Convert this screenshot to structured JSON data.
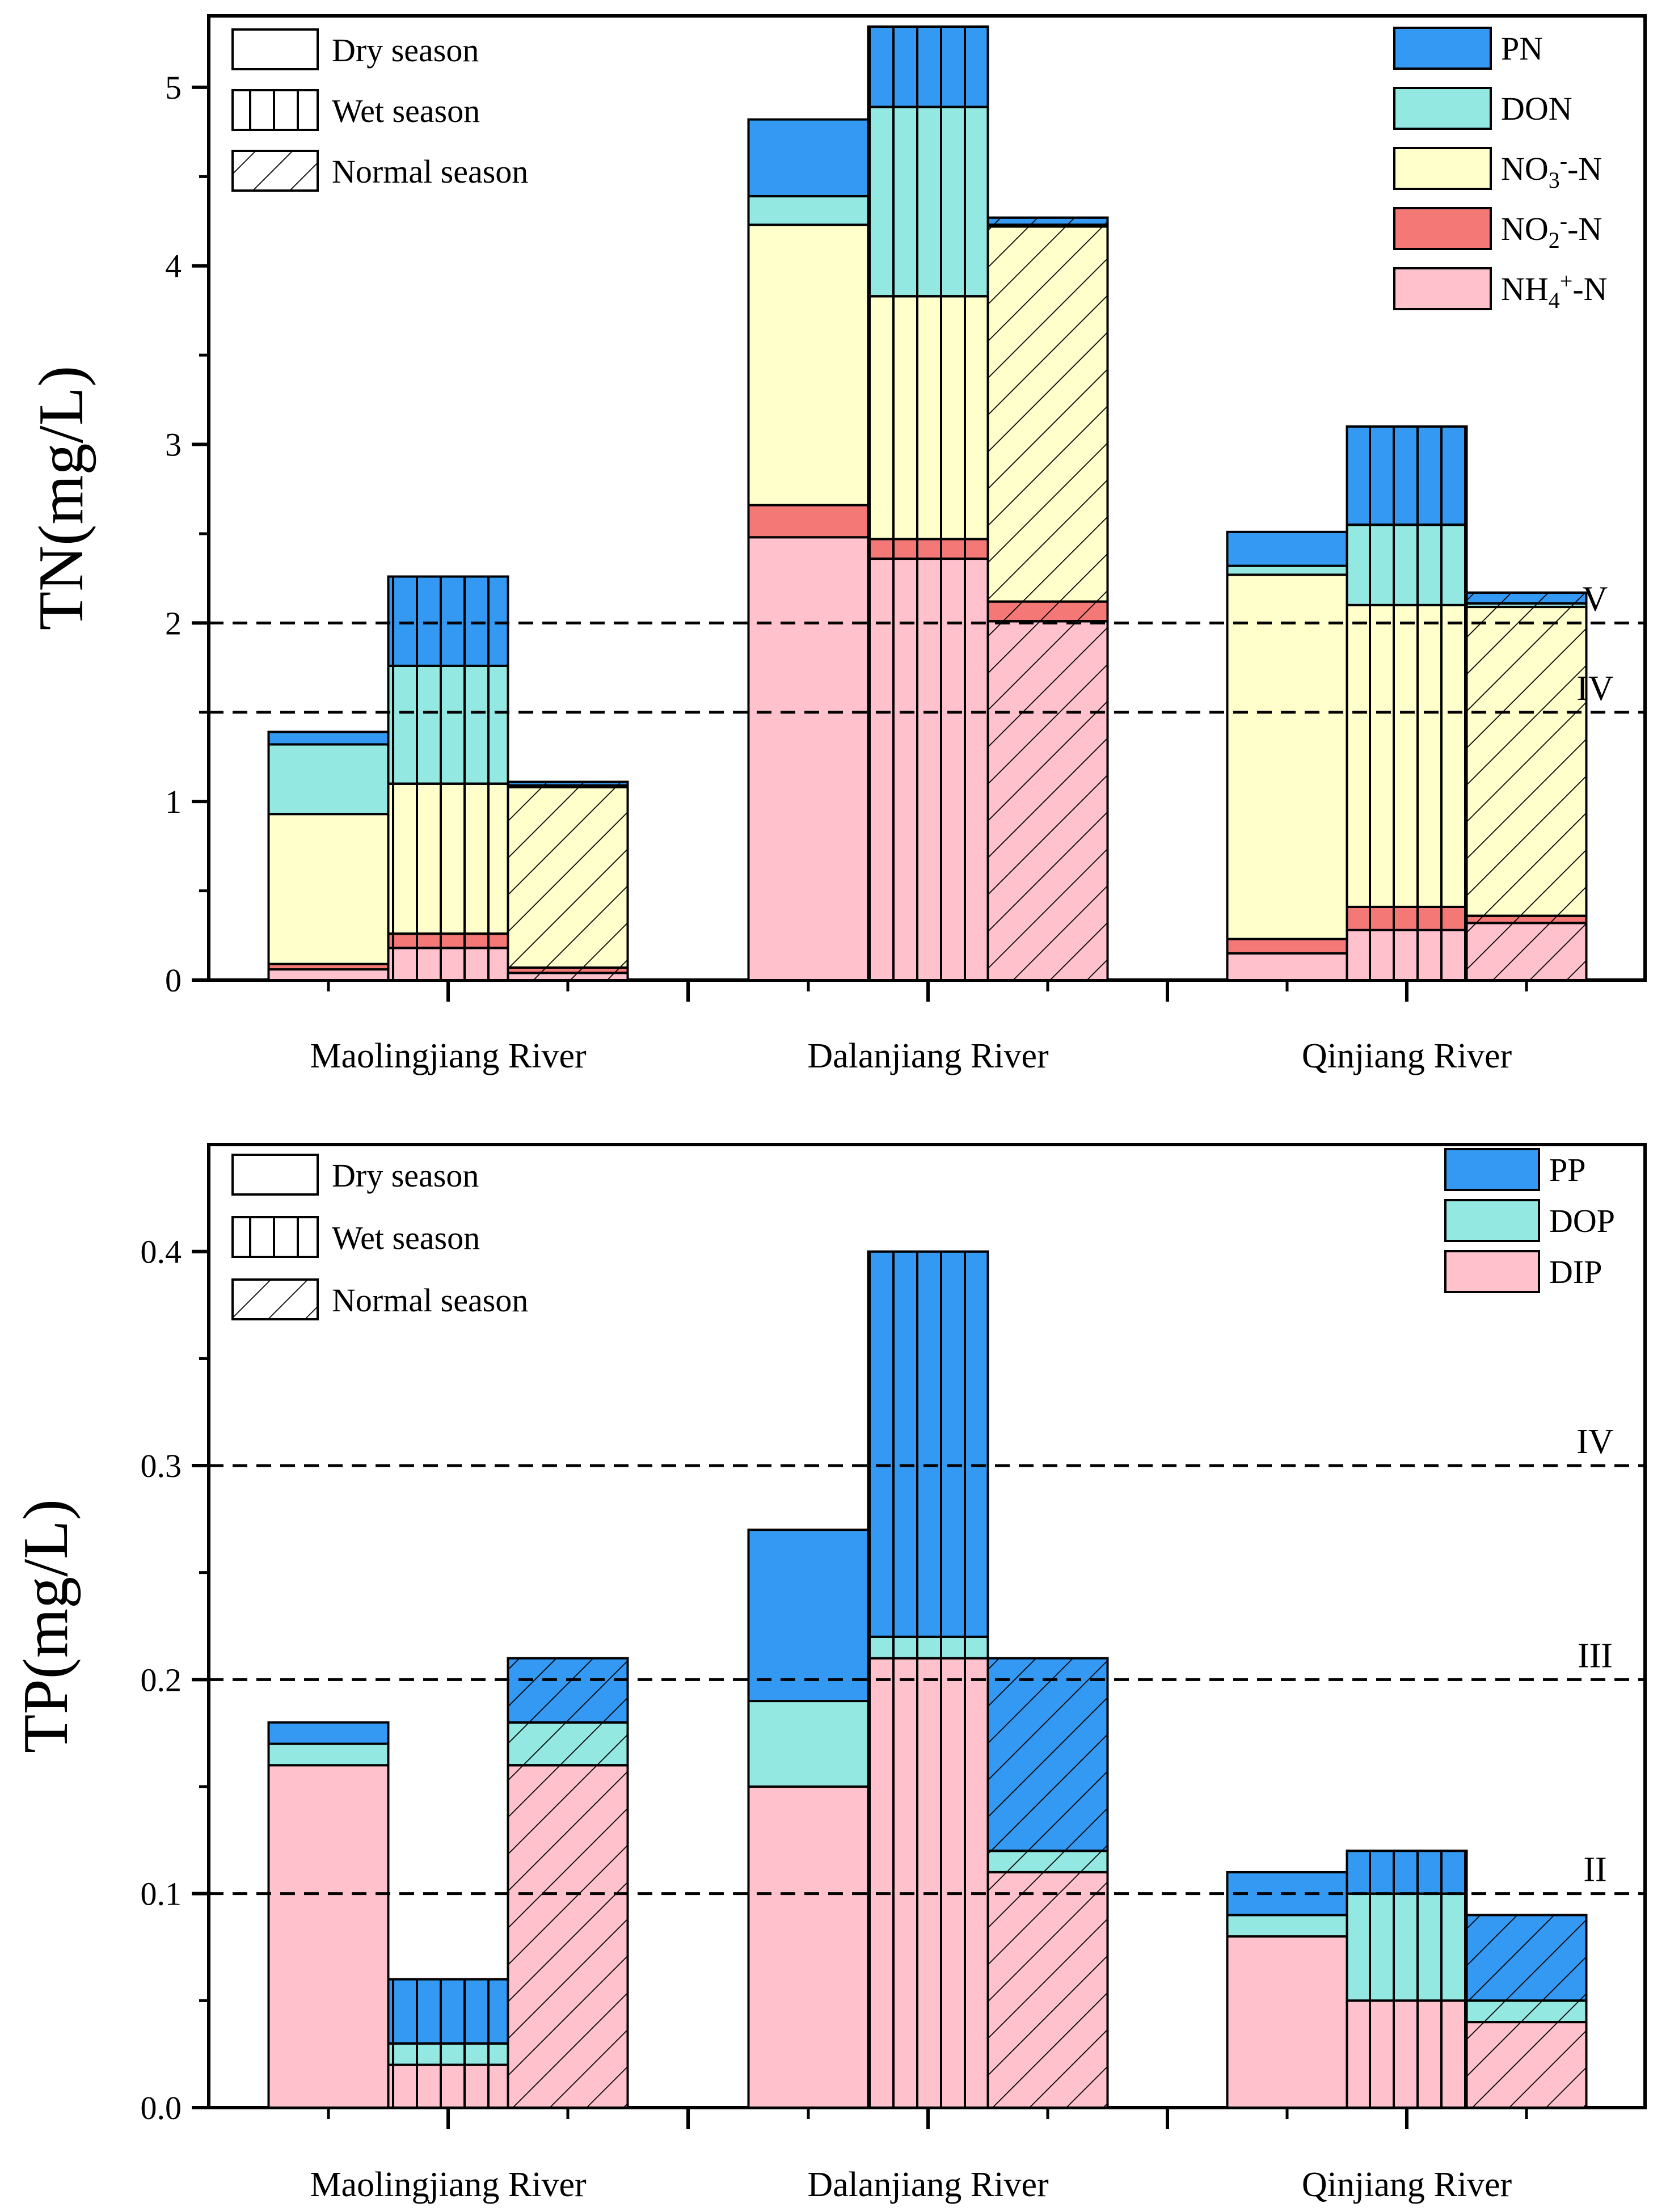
{
  "colors": {
    "PN": "#3399f2",
    "DON": "#93e8e2",
    "NO3": "#ffffcc",
    "NO2": "#f47876",
    "NH4": "#ffc2cd",
    "PP": "#3399f2",
    "DOP": "#93e8e2",
    "DIP": "#ffc2cd"
  },
  "chart_data": [
    {
      "type": "bar",
      "stacked": true,
      "ylabel": "TN(mg/L)",
      "ylim": [
        0,
        5.4
      ],
      "yticks": [
        0,
        1,
        2,
        3,
        4,
        5
      ],
      "categories": [
        "Maolingjiang River",
        "Dalanjiang River",
        "Qinjiang River"
      ],
      "seasons": [
        "Dry season",
        "Wet season",
        "Normal season"
      ],
      "season_legend": [
        "Dry season",
        "Wet season",
        "Normal season"
      ],
      "component_legend": [
        {
          "key": "PN",
          "base": "PN",
          "sup": "",
          "sub": "",
          "tail": ""
        },
        {
          "key": "DON",
          "base": "DON",
          "sup": "",
          "sub": "",
          "tail": ""
        },
        {
          "key": "NO3",
          "base": "NO",
          "sub": "3",
          "sup": "-",
          "tail": "-N"
        },
        {
          "key": "NO2",
          "base": "NO",
          "sub": "2",
          "sup": "-",
          "tail": "-N"
        },
        {
          "key": "NH4",
          "base": "NH",
          "sub": "4",
          "sup": "+",
          "tail": "-N"
        }
      ],
      "series": [
        {
          "name": "NH4+-N",
          "key": "NH4",
          "values": [
            [
              0.06,
              0.18,
              0.04
            ],
            [
              2.48,
              2.36,
              2.01
            ],
            [
              0.15,
              0.28,
              0.32
            ]
          ]
        },
        {
          "name": "NO2--N",
          "key": "NO2",
          "values": [
            [
              0.03,
              0.08,
              0.03
            ],
            [
              0.18,
              0.11,
              0.11
            ],
            [
              0.08,
              0.13,
              0.04
            ]
          ]
        },
        {
          "name": "NO3--N",
          "key": "NO3",
          "values": [
            [
              0.84,
              0.84,
              1.01
            ],
            [
              1.57,
              1.36,
              2.1
            ],
            [
              2.04,
              1.69,
              1.73
            ]
          ]
        },
        {
          "name": "DON",
          "key": "DON",
          "values": [
            [
              0.39,
              0.66,
              0.01
            ],
            [
              0.16,
              1.06,
              0.01
            ],
            [
              0.05,
              0.45,
              0.02
            ]
          ]
        },
        {
          "name": "PN",
          "key": "PN",
          "values": [
            [
              0.07,
              0.5,
              0.02
            ],
            [
              0.43,
              0.45,
              0.04
            ],
            [
              0.19,
              0.55,
              0.06
            ]
          ]
        }
      ],
      "reference_lines": [
        {
          "value": 2.0,
          "label": "V"
        },
        {
          "value": 1.5,
          "label": "IV"
        }
      ]
    },
    {
      "type": "bar",
      "stacked": true,
      "ylabel": "TP(mg/L)",
      "ylim": [
        0,
        0.45
      ],
      "yticks": [
        0.0,
        0.1,
        0.2,
        0.3,
        0.4
      ],
      "ytick_labels": [
        "0.0",
        "0.1",
        "0.2",
        "0.3",
        "0.4"
      ],
      "categories": [
        "Maolingjiang River",
        "Dalanjiang River",
        "Qinjiang River"
      ],
      "seasons": [
        "Dry season",
        "Wet season",
        "Normal season"
      ],
      "season_legend": [
        "Dry season",
        "Wet season",
        "Normal season"
      ],
      "component_legend": [
        {
          "key": "PP",
          "base": "PP",
          "sup": "",
          "sub": "",
          "tail": ""
        },
        {
          "key": "DOP",
          "base": "DOP",
          "sup": "",
          "sub": "",
          "tail": ""
        },
        {
          "key": "DIP",
          "base": "DIP",
          "sup": "",
          "sub": "",
          "tail": ""
        }
      ],
      "series": [
        {
          "name": "DIP",
          "key": "DIP",
          "values": [
            [
              0.16,
              0.02,
              0.16
            ],
            [
              0.15,
              0.21,
              0.11
            ],
            [
              0.08,
              0.05,
              0.04
            ]
          ]
        },
        {
          "name": "DOP",
          "key": "DOP",
          "values": [
            [
              0.01,
              0.01,
              0.02
            ],
            [
              0.04,
              0.01,
              0.01
            ],
            [
              0.01,
              0.05,
              0.01
            ]
          ]
        },
        {
          "name": "PP",
          "key": "PP",
          "values": [
            [
              0.01,
              0.03,
              0.03
            ],
            [
              0.08,
              0.18,
              0.09
            ],
            [
              0.02,
              0.02,
              0.04
            ]
          ]
        }
      ],
      "reference_lines": [
        {
          "value": 0.3,
          "label": "IV"
        },
        {
          "value": 0.2,
          "label": "III"
        },
        {
          "value": 0.1,
          "label": "II"
        }
      ]
    }
  ]
}
